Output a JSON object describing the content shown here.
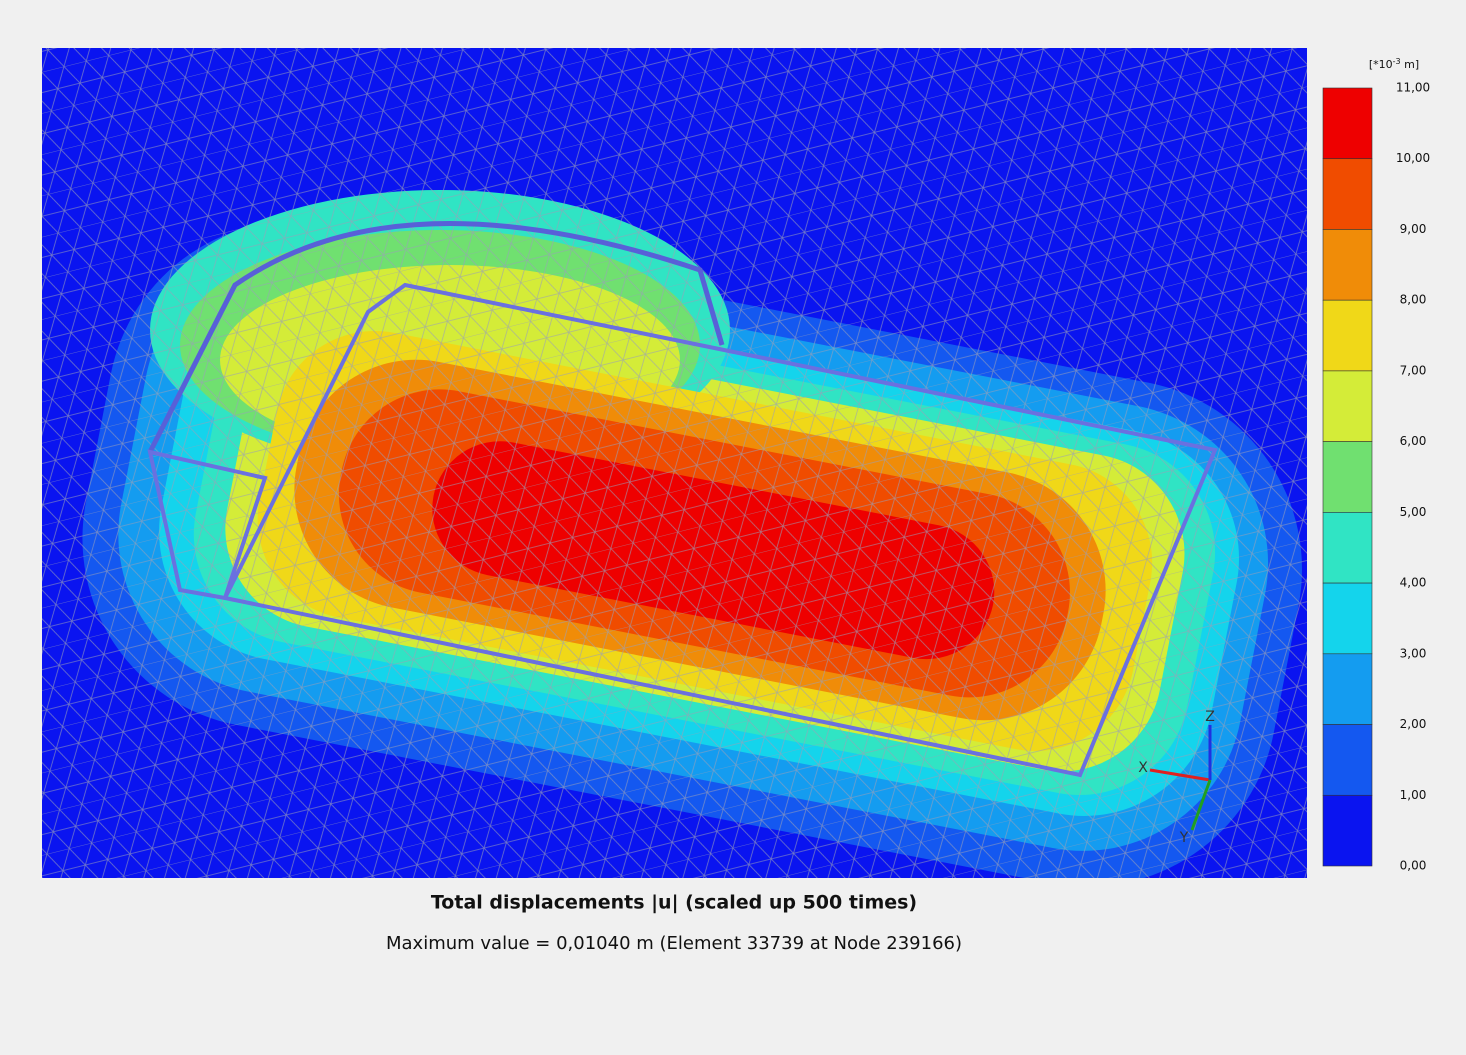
{
  "plot": {
    "title": "Total displacements |u| (scaled up 500 times)",
    "subtitle": "Maximum value = 0,01040 m (Element 33739 at Node 239166)"
  },
  "legend": {
    "unit": {
      "base": "[*10",
      "exponent": "-3",
      "suffix": " m]"
    },
    "levels": [
      "11,00",
      "10,00",
      "9,00",
      "8,00",
      "7,00",
      "6,00",
      "5,00",
      "4,00",
      "3,00",
      "2,00",
      "1,00",
      "0,00"
    ],
    "colors": [
      "#ee0000",
      "#f04c00",
      "#f08c08",
      "#f0d818",
      "#d4ec38",
      "#70e070",
      "#30e4c4",
      "#14d4ec",
      "#149cf0",
      "#1458f0",
      "#0a14f0"
    ]
  },
  "triad": {
    "z": "Z",
    "x": "X",
    "y": "Y"
  }
}
